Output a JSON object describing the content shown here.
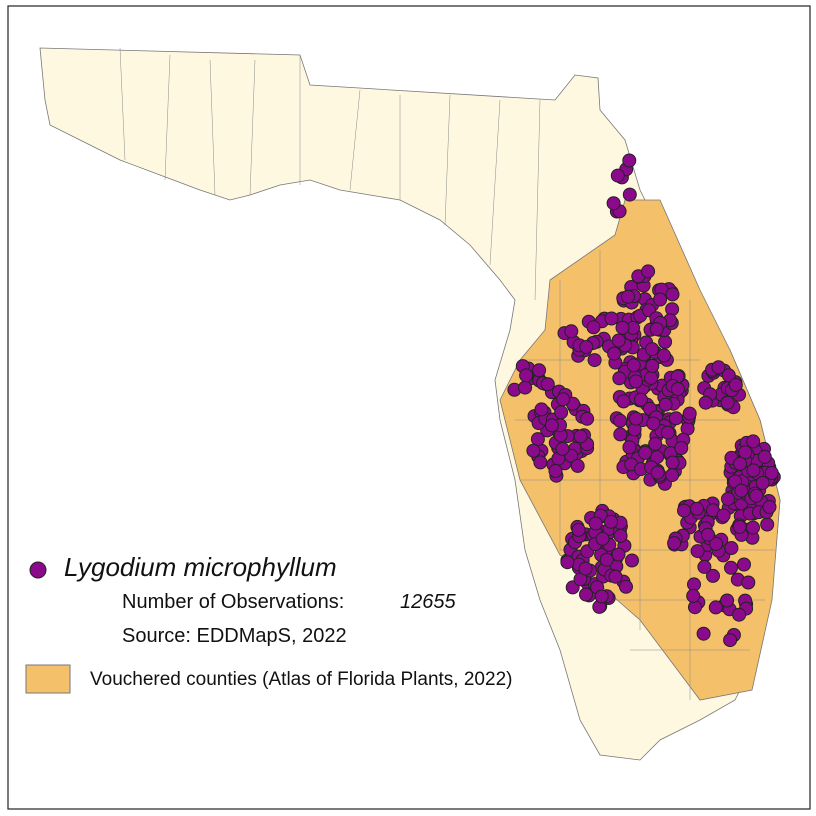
{
  "legend": {
    "species": "Lygodium microphyllum",
    "observations_label": "Number of Observations:",
    "observations_count": 12655,
    "source": "Source: EDDMapS, 2022",
    "vouchered": "Vouchered counties (Atlas of Florida Plants, 2022)"
  }
}
